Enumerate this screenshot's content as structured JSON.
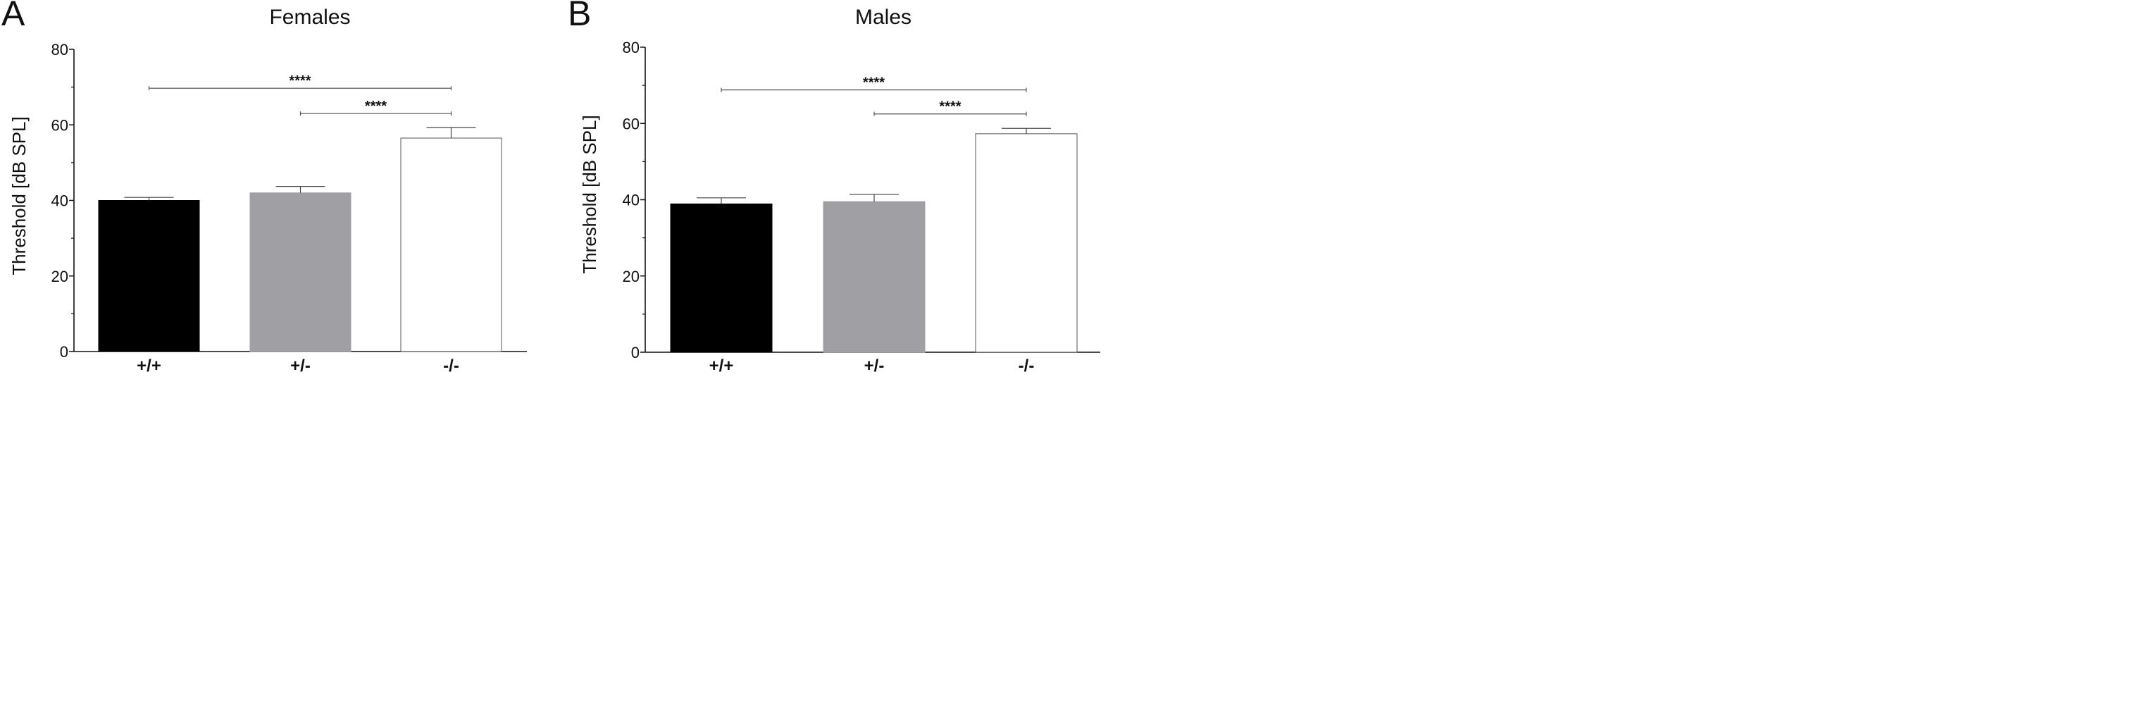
{
  "chart_data": [
    {
      "type": "bar",
      "panel_label": "A",
      "title": "Females",
      "ylabel": "Threshold [dB SPL]",
      "xlabel": "",
      "categories": [
        "+/+",
        "+/-",
        "-/-"
      ],
      "values": [
        40.0,
        42.0,
        56.5
      ],
      "error": [
        0.8,
        1.7,
        2.8
      ],
      "bar_colors": [
        "#000000",
        "#a0a0a4",
        "#ffffff"
      ],
      "ylim": [
        0,
        80
      ],
      "yticks": [
        "0",
        "20",
        "40",
        "60",
        "80"
      ],
      "grid": false,
      "legend": "none",
      "significance": [
        {
          "from": "+/+",
          "to": "-/-",
          "label": "****",
          "y": 69.7
        },
        {
          "from": "+/-",
          "to": "-/-",
          "label": "****",
          "y": 63.0
        }
      ]
    },
    {
      "type": "bar",
      "panel_label": "B",
      "title": "Males",
      "ylabel": "Threshold [dB SPL]",
      "xlabel": "",
      "categories": [
        "+/+",
        "+/-",
        "-/-"
      ],
      "values": [
        38.9,
        39.5,
        57.3
      ],
      "error": [
        1.6,
        1.9,
        1.4
      ],
      "bar_colors": [
        "#000000",
        "#a0a0a4",
        "#ffffff"
      ],
      "ylim": [
        0,
        80
      ],
      "yticks": [
        "0",
        "20",
        "40",
        "60",
        "80"
      ],
      "grid": false,
      "legend": "none",
      "significance": [
        {
          "from": "+/+",
          "to": "-/-",
          "label": "****",
          "y": 68.8
        },
        {
          "from": "+/-",
          "to": "-/-",
          "label": "****",
          "y": 62.5
        }
      ]
    }
  ]
}
